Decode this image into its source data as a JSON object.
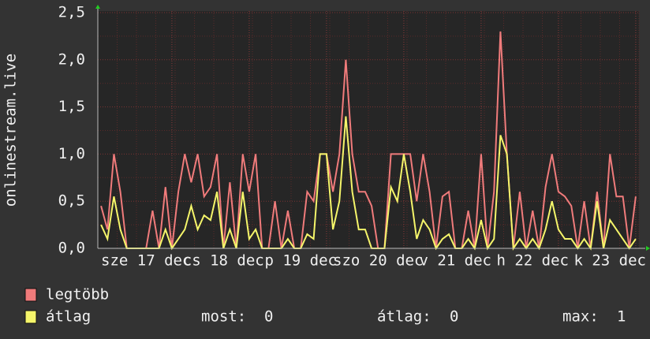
{
  "chart_data": {
    "type": "line",
    "y_label": "onlinestream.live",
    "categories": [
      null,
      null,
      null,
      null,
      null,
      null,
      null,
      "sze 17 dec",
      null,
      null,
      null,
      null,
      null,
      null,
      null,
      null,
      null,
      null,
      null,
      "cs 18 dec",
      null,
      null,
      null,
      null,
      null,
      null,
      null,
      null,
      null,
      null,
      null,
      "p 19 dec",
      null,
      null,
      null,
      null,
      null,
      null,
      null,
      null,
      null,
      null,
      null,
      "szo 20 dec",
      null,
      null,
      null,
      null,
      null,
      null,
      null,
      null,
      null,
      null,
      null,
      "v 21 dec",
      null,
      null,
      null,
      null,
      null,
      null,
      null,
      null,
      null,
      null,
      null,
      "h 22 dec",
      null,
      null,
      null,
      null,
      null,
      null,
      null,
      null,
      null,
      null,
      null,
      "k 23 dec",
      null,
      null,
      null,
      null
    ],
    "series": [
      {
        "name": "legtöbb",
        "color": "#f07b7b",
        "values": [
          0.45,
          0.2,
          1.0,
          0.6,
          0,
          0,
          0,
          0,
          0.4,
          0,
          0.65,
          0,
          0.6,
          1.0,
          0.7,
          1.0,
          0.55,
          0.65,
          1.0,
          0,
          0.7,
          0,
          1.0,
          0.6,
          1.0,
          0,
          0,
          0.5,
          0,
          0.4,
          0,
          0,
          0.6,
          0.5,
          1.0,
          1.0,
          0.6,
          1.0,
          2.0,
          1.0,
          0.6,
          0.6,
          0.45,
          0,
          0,
          1.0,
          1.0,
          1.0,
          1.0,
          0.5,
          1.0,
          0.6,
          0,
          0.55,
          0.6,
          0,
          0,
          0.4,
          0,
          1.0,
          0,
          0.6,
          2.3,
          1.0,
          0,
          0.6,
          0,
          0.4,
          0,
          0.65,
          1.0,
          0.6,
          0.55,
          0.45,
          0,
          0.5,
          0,
          0.6,
          0,
          1.0,
          0.55,
          0.55,
          0,
          0.55
        ]
      },
      {
        "name": "átlag",
        "color": "#f5f56a",
        "values": [
          0.25,
          0.1,
          0.55,
          0.2,
          0,
          0,
          0,
          0,
          0,
          0,
          0.2,
          0,
          0.1,
          0.2,
          0.45,
          0.2,
          0.35,
          0.3,
          0.6,
          0,
          0.2,
          0,
          0.6,
          0.1,
          0.2,
          0,
          0,
          0,
          0,
          0.1,
          0,
          0,
          0.15,
          0.1,
          1.0,
          1.0,
          0.2,
          0.5,
          1.4,
          0.6,
          0.2,
          0.2,
          0,
          0,
          0,
          0.65,
          0.5,
          1.0,
          0.6,
          0.1,
          0.3,
          0.2,
          0,
          0.1,
          0.15,
          0,
          0,
          0.1,
          0,
          0.3,
          0,
          0.1,
          1.2,
          1.0,
          0,
          0.1,
          0,
          0.1,
          0,
          0.2,
          0.5,
          0.2,
          0.1,
          0.1,
          0,
          0.1,
          0,
          0.5,
          0,
          0.3,
          0.2,
          0.1,
          0,
          0.1
        ]
      }
    ],
    "ylim": [
      0,
      2.5
    ],
    "yticks": [
      {
        "value": 0,
        "label": "0,0"
      },
      {
        "value": 0.5,
        "label": "0,5"
      },
      {
        "value": 1,
        "label": "1,0"
      },
      {
        "value": 1.5,
        "label": "1,5"
      },
      {
        "value": 2,
        "label": "2,0"
      },
      {
        "value": 2.5,
        "label": "2,5"
      }
    ],
    "grid": true,
    "stats": [
      {
        "label": "most:",
        "value": 0
      },
      {
        "label": "átlag:",
        "value": 0
      },
      {
        "label": "max:",
        "value": 1
      }
    ]
  }
}
